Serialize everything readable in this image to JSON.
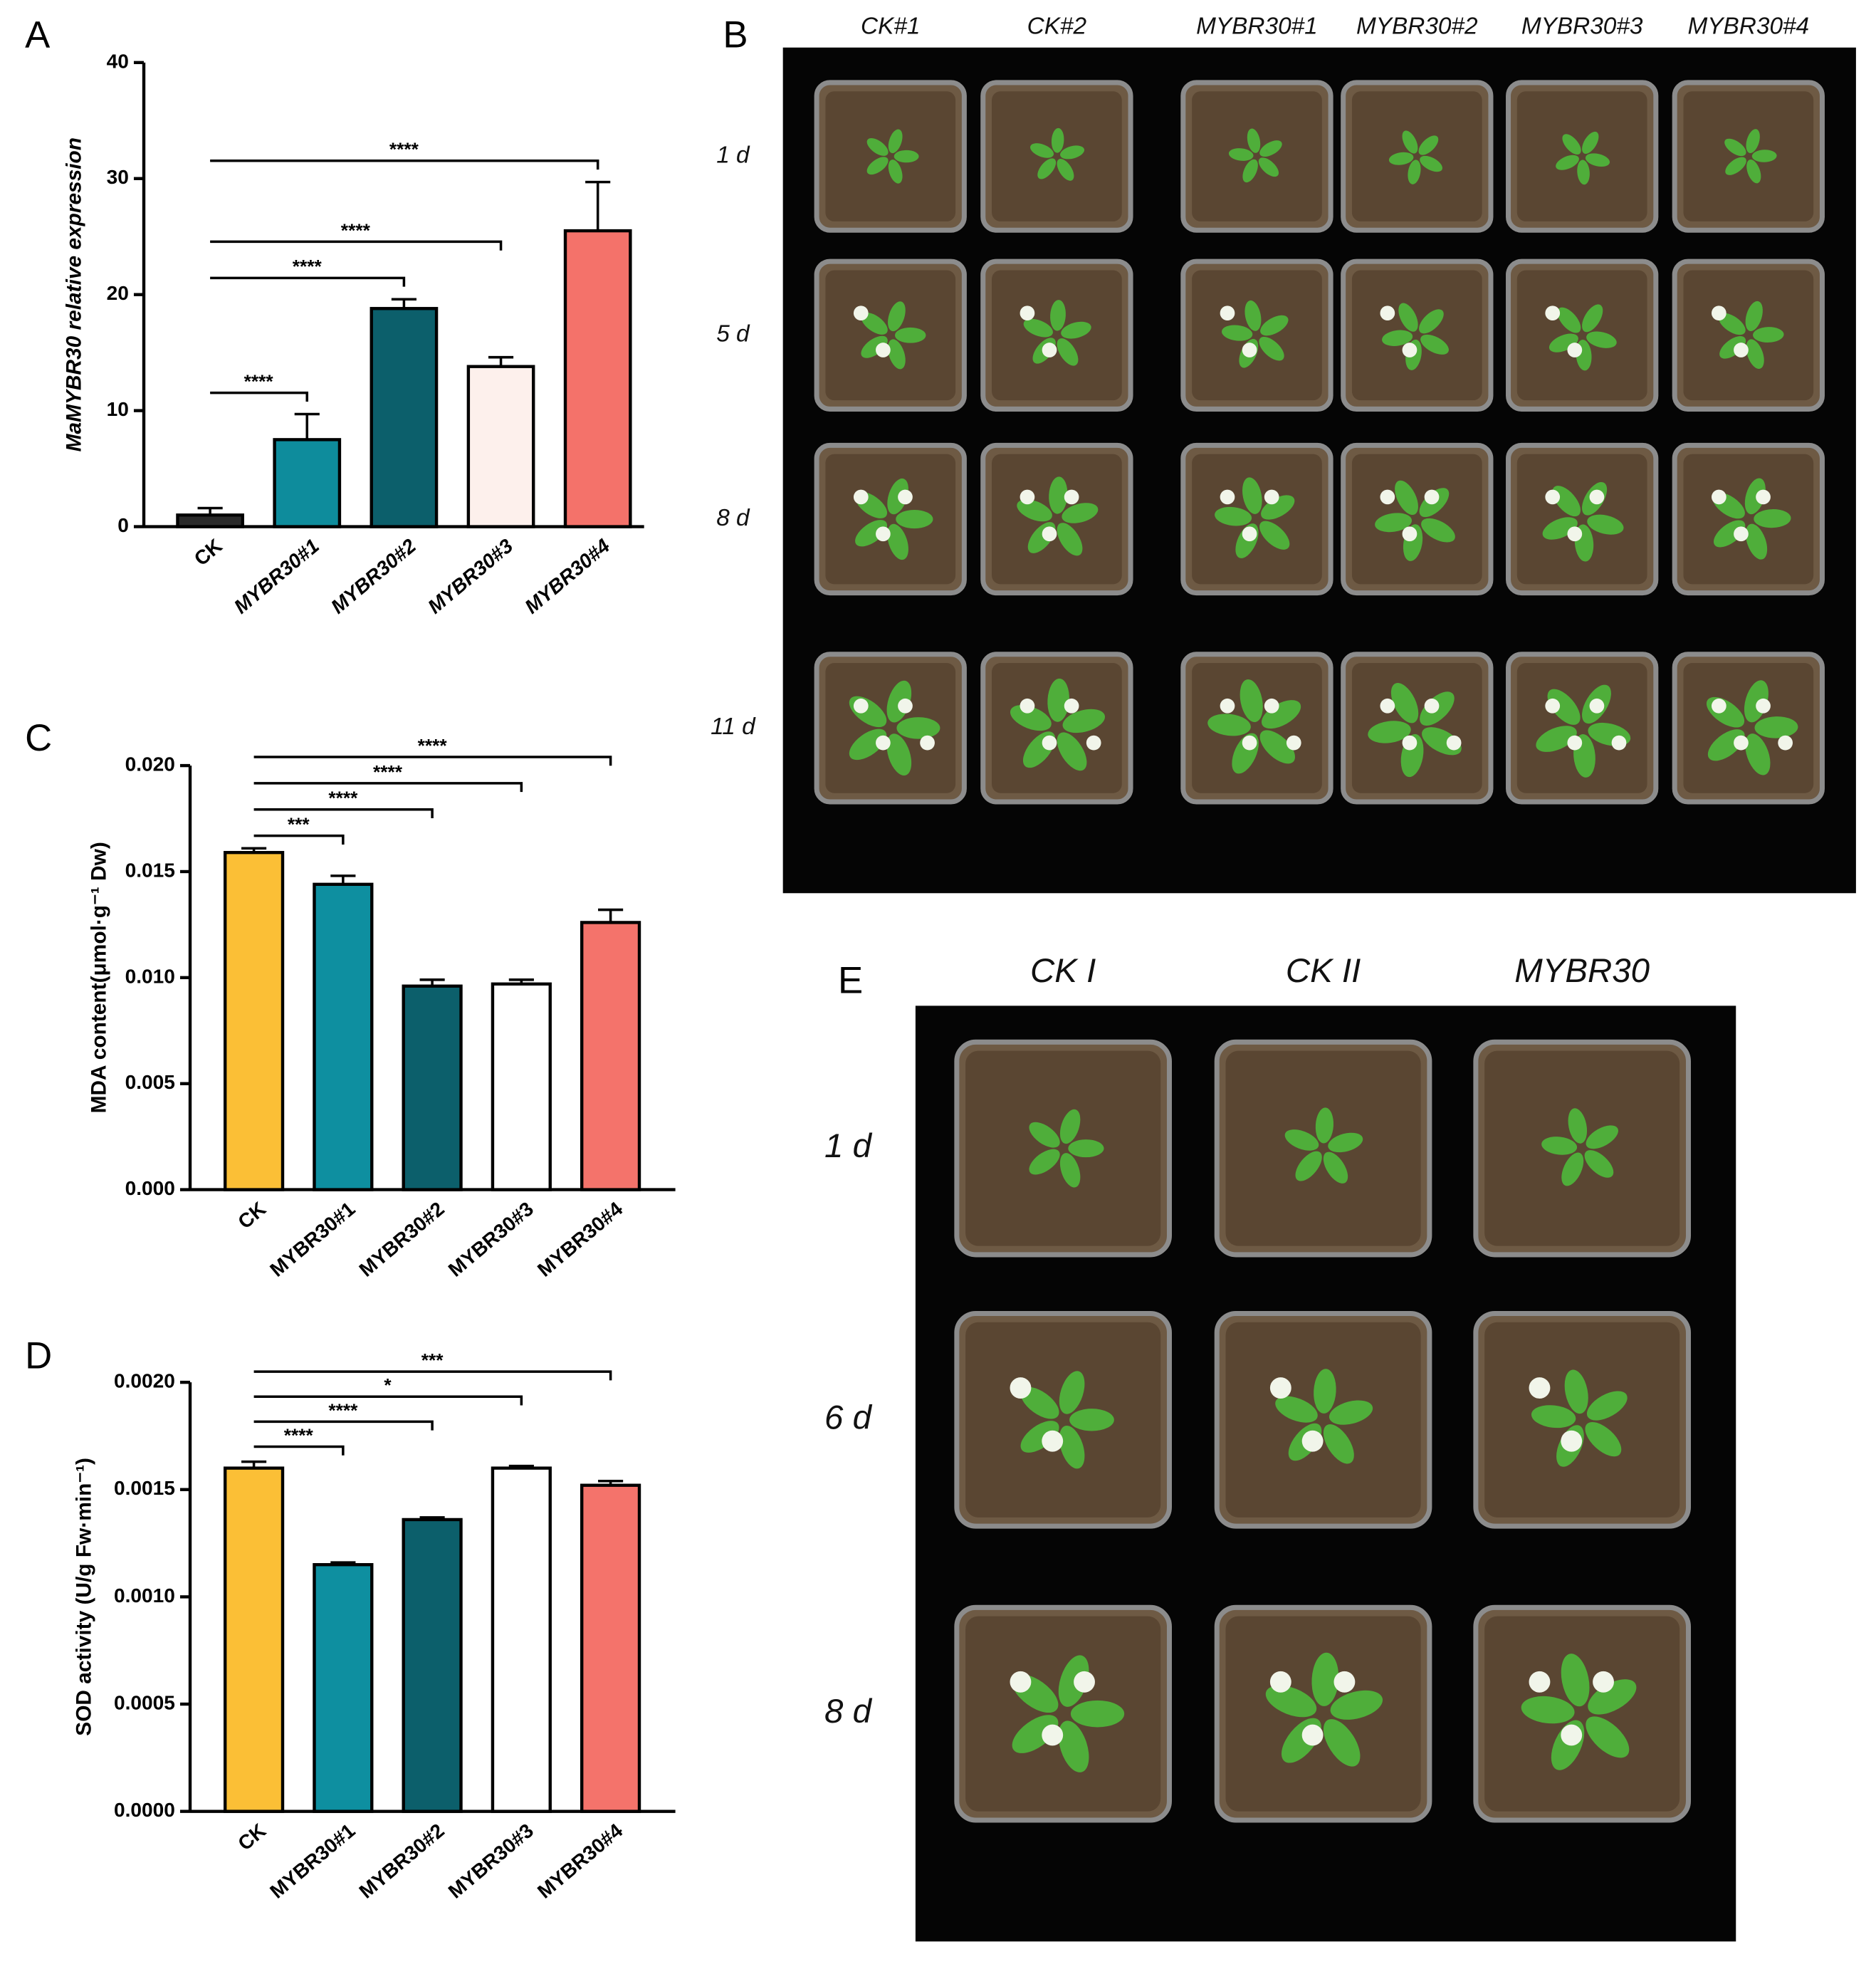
{
  "panel_labels": [
    "A",
    "B",
    "C",
    "D",
    "E"
  ],
  "chart_data": [
    {
      "type": "bar",
      "ylabel": "MaMYBR30 relative expression",
      "categories": [
        "CK",
        "MYBR30#1",
        "MYBR30#2",
        "MYBR30#3",
        "MYBR30#4"
      ],
      "values": [
        1.0,
        7.5,
        18.8,
        13.8,
        25.5
      ],
      "errors": [
        0.6,
        2.2,
        0.8,
        0.8,
        4.2
      ],
      "colors": [
        "#2a2a2a",
        "#0e8c9c",
        "#0c5f6b",
        "#fdf0ec",
        "#f4726a"
      ],
      "ylim": [
        0,
        40
      ],
      "yticks": [
        0,
        10,
        20,
        30,
        40
      ],
      "significance": [
        null,
        "****",
        "****",
        "****",
        "****"
      ]
    },
    {
      "type": "bar",
      "ylabel": "MDA content(μmol·g⁻¹ Dw)",
      "categories": [
        "CK",
        "MYBR30#1",
        "MYBR30#2",
        "MYBR30#3",
        "MYBR30#4"
      ],
      "values": [
        0.0159,
        0.0144,
        0.0096,
        0.0097,
        0.0126
      ],
      "errors": [
        0.0002,
        0.0004,
        0.0003,
        0.0002,
        0.0006
      ],
      "colors": [
        "#fbbf36",
        "#0e8fa0",
        "#0c5f6b",
        "#ffffff",
        "#f4736b"
      ],
      "ylim": [
        0,
        0.02
      ],
      "yticks": [
        {
          "value": 0,
          "label": "0.000"
        },
        {
          "value": 0.005,
          "label": "0.005"
        },
        {
          "value": 0.01,
          "label": "0.010"
        },
        {
          "value": 0.015,
          "label": "0.015"
        },
        {
          "value": 0.02,
          "label": "0.020"
        }
      ],
      "significance": [
        null,
        "***",
        "****",
        "****",
        "****"
      ]
    },
    {
      "type": "bar",
      "ylabel": "SOD activity (U/g Fw·min⁻¹)",
      "categories": [
        "CK",
        "MYBR30#1",
        "MYBR30#2",
        "MYBR30#3",
        "MYBR30#4"
      ],
      "values": [
        0.0016,
        0.00115,
        0.00136,
        0.0016,
        0.00152
      ],
      "errors": [
        3e-05,
        1e-05,
        1e-05,
        1e-05,
        2e-05
      ],
      "colors": [
        "#fbbf36",
        "#0e8fa0",
        "#0c5f6b",
        "#ffffff",
        "#f4736b"
      ],
      "ylim": [
        0,
        0.002
      ],
      "yticks": [
        {
          "value": 0,
          "label": "0.0000"
        },
        {
          "value": 0.0005,
          "label": "0.0005"
        },
        {
          "value": 0.001,
          "label": "0.0010"
        },
        {
          "value": 0.0015,
          "label": "0.0015"
        },
        {
          "value": 0.002,
          "label": "0.0020"
        }
      ],
      "significance": [
        null,
        "****",
        "****",
        "*",
        "***"
      ]
    }
  ],
  "photos": [
    {
      "columns": [
        "CK#1",
        "CK#2",
        "MYBR30#1",
        "MYBR30#2",
        "MYBR30#3",
        "MYBR30#4"
      ],
      "rows": [
        "1 d",
        "5 d",
        "8 d",
        "11 d"
      ]
    },
    {
      "columns": [
        "CK I",
        "CK II",
        "MYBR30"
      ],
      "rows": [
        "1 d",
        "6 d",
        "8 d"
      ]
    }
  ]
}
